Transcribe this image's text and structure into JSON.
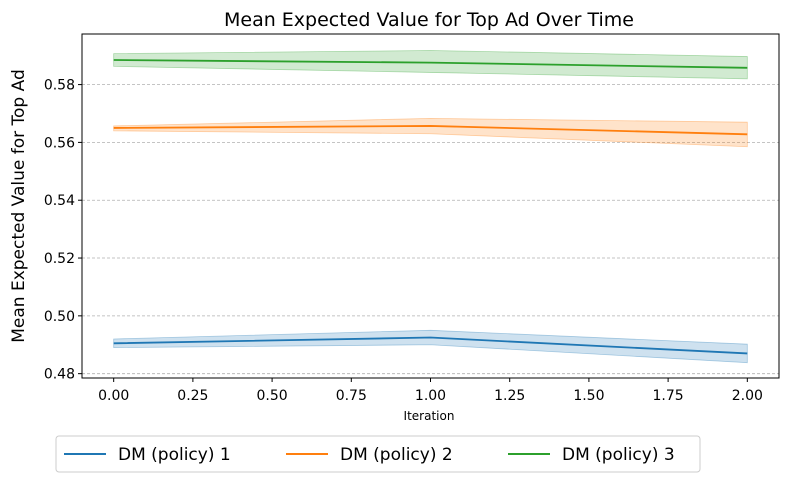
{
  "chart_data": {
    "type": "line",
    "title": "Mean Expected Value for Top Ad Over Time",
    "xlabel": "Iteration",
    "ylabel": "Mean Expected Value for Top Ad",
    "xlim": [
      -0.1,
      2.1
    ],
    "ylim": [
      0.4785,
      0.5975
    ],
    "xticks": [
      0.0,
      0.25,
      0.5,
      0.75,
      1.0,
      1.25,
      1.5,
      1.75,
      2.0
    ],
    "xtick_labels": [
      "0.00",
      "0.25",
      "0.50",
      "0.75",
      "1.00",
      "1.25",
      "1.50",
      "1.75",
      "2.00"
    ],
    "yticks": [
      0.48,
      0.5,
      0.52,
      0.54,
      0.56,
      0.58
    ],
    "ytick_labels": [
      "0.48",
      "0.50",
      "0.52",
      "0.54",
      "0.56",
      "0.58"
    ],
    "grid": "y-dashed",
    "legend_position": "bottom",
    "x": [
      0,
      1,
      2
    ],
    "series": [
      {
        "name": "DM (policy) 1",
        "color": "#1f77b4",
        "values": [
          0.4905,
          0.4925,
          0.487
        ],
        "lower": [
          0.489,
          0.49,
          0.4838
        ],
        "upper": [
          0.492,
          0.495,
          0.4902
        ]
      },
      {
        "name": "DM (policy) 2",
        "color": "#ff7f0e",
        "values": [
          0.565,
          0.5657,
          0.5628
        ],
        "lower": [
          0.564,
          0.563,
          0.5585
        ],
        "upper": [
          0.5657,
          0.5683,
          0.567
        ]
      },
      {
        "name": "DM (policy) 3",
        "color": "#2ca02c",
        "values": [
          0.5885,
          0.5876,
          0.5858
        ],
        "lower": [
          0.5863,
          0.5842,
          0.582
        ],
        "upper": [
          0.5907,
          0.5918,
          0.5897
        ]
      }
    ]
  }
}
